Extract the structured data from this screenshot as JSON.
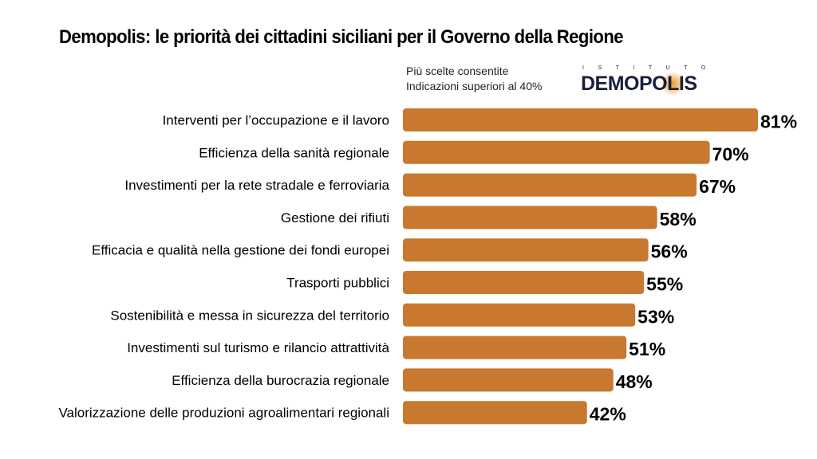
{
  "header": {
    "title": "Demopolis: le priorità dei cittadini siciliani per il Governo della Regione",
    "subtitle_line1": "Più scelte consentite",
    "subtitle_line2": "Indicazioni superiori al 40%"
  },
  "logo": {
    "small_text": "ISTITUTO",
    "word": "DEMOPOLIS"
  },
  "colors": {
    "bar": "#c8792f",
    "logo": "#1a1f3a"
  },
  "chart_data": {
    "type": "bar",
    "orientation": "horizontal",
    "categories": [
      "Interventi per l’occupazione e il lavoro",
      "Efficienza della sanità regionale",
      "Investimenti per la rete stradale e ferroviaria",
      "Gestione dei rifiuti",
      "Efficacia e qualità nella gestione dei fondi europei",
      "Trasporti pubblici",
      "Sostenibilità e messa in sicurezza del territorio",
      "Investimenti sul turismo e rilancio attrattività",
      "Efficienza della burocrazia regionale",
      "Valorizzazione delle produzioni agroalimentari regionali"
    ],
    "values": [
      81,
      70,
      67,
      58,
      56,
      55,
      53,
      51,
      48,
      42
    ],
    "value_labels": [
      "81%",
      "70%",
      "67%",
      "58%",
      "56%",
      "55%",
      "53%",
      "51%",
      "48%",
      "42%"
    ],
    "unit": "%",
    "xlim": [
      0,
      81
    ],
    "grid": false,
    "legend": "none"
  }
}
